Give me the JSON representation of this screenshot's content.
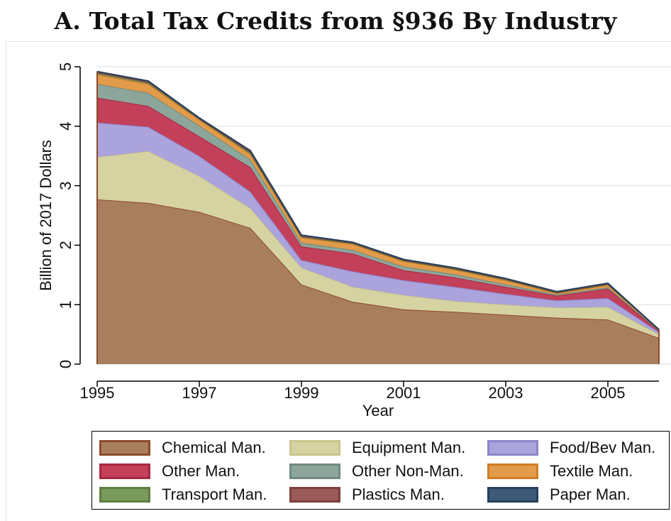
{
  "chart_data": {
    "type": "area",
    "stacked": true,
    "title": "A. Total Tax Credits from §936 By Industry",
    "xlabel": "Year",
    "ylabel": "Billion of 2017 Dollars",
    "x": [
      1995,
      1996,
      1997,
      1998,
      1999,
      2000,
      2001,
      2002,
      2003,
      2004,
      2005,
      2006
    ],
    "xticks": [
      "1995",
      "1997",
      "1999",
      "2001",
      "2003",
      "2005"
    ],
    "yticks": [
      "0",
      "1",
      "2",
      "3",
      "4",
      "5"
    ],
    "xlim": [
      1995,
      2006
    ],
    "ylim": [
      0,
      5
    ],
    "grid": true,
    "legend_position": "bottom",
    "series": [
      {
        "name": "Chemical Man.",
        "fill": "#a97e5e",
        "stroke": "#8c4a2b",
        "values": [
          2.77,
          2.71,
          2.56,
          2.29,
          1.34,
          1.05,
          0.92,
          0.88,
          0.83,
          0.78,
          0.75,
          0.44
        ]
      },
      {
        "name": "Equipment Man.",
        "fill": "#d6d3a2",
        "stroke": "#c9c48a",
        "values": [
          0.71,
          0.87,
          0.6,
          0.33,
          0.28,
          0.25,
          0.24,
          0.18,
          0.17,
          0.17,
          0.21,
          0.06
        ]
      },
      {
        "name": "Food/Bev Man.",
        "fill": "#aaa3dc",
        "stroke": "#8d84c9",
        "values": [
          0.58,
          0.41,
          0.34,
          0.28,
          0.13,
          0.26,
          0.25,
          0.24,
          0.18,
          0.12,
          0.15,
          0.04
        ]
      },
      {
        "name": "Other Man.",
        "fill": "#c2405a",
        "stroke": "#a8283f",
        "values": [
          0.42,
          0.35,
          0.33,
          0.41,
          0.23,
          0.3,
          0.17,
          0.16,
          0.12,
          0.08,
          0.16,
          0.02
        ]
      },
      {
        "name": "Other Non-Man.",
        "fill": "#8da69c",
        "stroke": "#6f8a80",
        "values": [
          0.23,
          0.22,
          0.18,
          0.13,
          0.06,
          0.06,
          0.06,
          0.05,
          0.04,
          0.02,
          0.02,
          0.01
        ]
      },
      {
        "name": "Textile Man.",
        "fill": "#e19b4a",
        "stroke": "#d07e26",
        "values": [
          0.16,
          0.15,
          0.1,
          0.09,
          0.09,
          0.1,
          0.09,
          0.08,
          0.07,
          0.02,
          0.04,
          0.01
        ]
      },
      {
        "name": "Transport Man.",
        "fill": "#7a9a5c",
        "stroke": "#5e7d40",
        "values": [
          0.02,
          0.02,
          0.01,
          0.02,
          0.01,
          0.01,
          0.01,
          0.01,
          0.01,
          0.01,
          0.01,
          0.0
        ]
      },
      {
        "name": "Plastics Man.",
        "fill": "#9c5a5a",
        "stroke": "#7e3f3f",
        "values": [
          0.02,
          0.02,
          0.01,
          0.02,
          0.02,
          0.01,
          0.01,
          0.01,
          0.01,
          0.01,
          0.01,
          0.0
        ]
      },
      {
        "name": "Paper Man.",
        "fill": "#3d5a78",
        "stroke": "#24405c",
        "values": [
          0.01,
          0.01,
          0.01,
          0.02,
          0.01,
          0.01,
          0.01,
          0.01,
          0.01,
          0.01,
          0.01,
          0.0
        ]
      }
    ]
  }
}
